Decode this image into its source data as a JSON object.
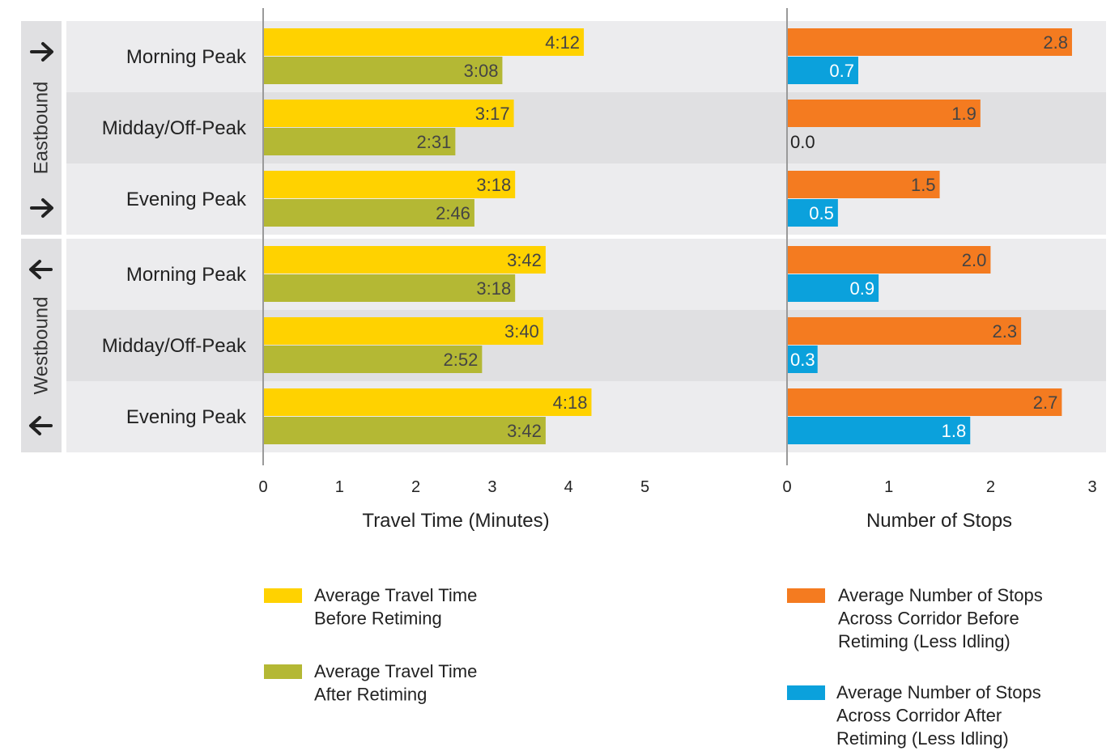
{
  "chart_data": [
    {
      "type": "bar",
      "orientation": "horizontal",
      "xlabel": "Travel Time (Minutes)",
      "xlim": [
        0,
        5
      ],
      "xticks": [
        "0",
        "1",
        "2",
        "3",
        "4",
        "5"
      ],
      "groups": [
        {
          "label": "Eastbound",
          "direction": "right",
          "categories": [
            "Morning Peak",
            "Midday/Off-Peak",
            "Evening Peak"
          ]
        },
        {
          "label": "Westbound",
          "direction": "left",
          "categories": [
            "Morning Peak",
            "Midday/Off-Peak",
            "Evening Peak"
          ]
        }
      ],
      "series": [
        {
          "name": "Average Travel Time Before Retiming",
          "legend_lines": [
            "Average Travel Time",
            "Before Retiming"
          ],
          "color": "#FFD200",
          "values": [
            4.2,
            3.283,
            3.3,
            3.7,
            3.667,
            4.3
          ],
          "labels": [
            "4:12",
            "3:17",
            "3:18",
            "3:42",
            "3:40",
            "4:18"
          ]
        },
        {
          "name": "Average Travel Time After Retiming",
          "legend_lines": [
            "Average Travel Time",
            "After Retiming"
          ],
          "color": "#B4B834",
          "values": [
            3.133,
            2.517,
            2.767,
            3.3,
            2.867,
            3.7
          ],
          "labels": [
            "3:08",
            "2:31",
            "2:46",
            "3:18",
            "2:52",
            "3:42"
          ]
        }
      ]
    },
    {
      "type": "bar",
      "orientation": "horizontal",
      "xlabel": "Number of Stops",
      "xlim": [
        0,
        3
      ],
      "xticks": [
        "0",
        "1",
        "2",
        "3"
      ],
      "series": [
        {
          "name": "Average Number of Stops Across Corridor Before Retiming (Less Idling)",
          "legend_lines": [
            "Average Number of Stops",
            "Across Corridor Before",
            "Retiming (Less Idling)"
          ],
          "color": "#F47B20",
          "values": [
            2.8,
            1.9,
            1.5,
            2.0,
            2.3,
            2.7
          ],
          "labels": [
            "2.8",
            "1.9",
            "1.5",
            "2.0",
            "2.3",
            "2.7"
          ]
        },
        {
          "name": "Average Number of Stops Across Corridor After Retiming (Less Idling)",
          "legend_lines": [
            "Average Number of Stops",
            "Across Corridor After",
            "Retiming (Less Idling)"
          ],
          "color": "#0BA1DC",
          "values": [
            0.7,
            0.0,
            0.5,
            0.9,
            0.3,
            1.8
          ],
          "labels": [
            "0.7",
            "0.0",
            "0.5",
            "0.9",
            "0.3",
            "1.8"
          ]
        }
      ]
    }
  ]
}
